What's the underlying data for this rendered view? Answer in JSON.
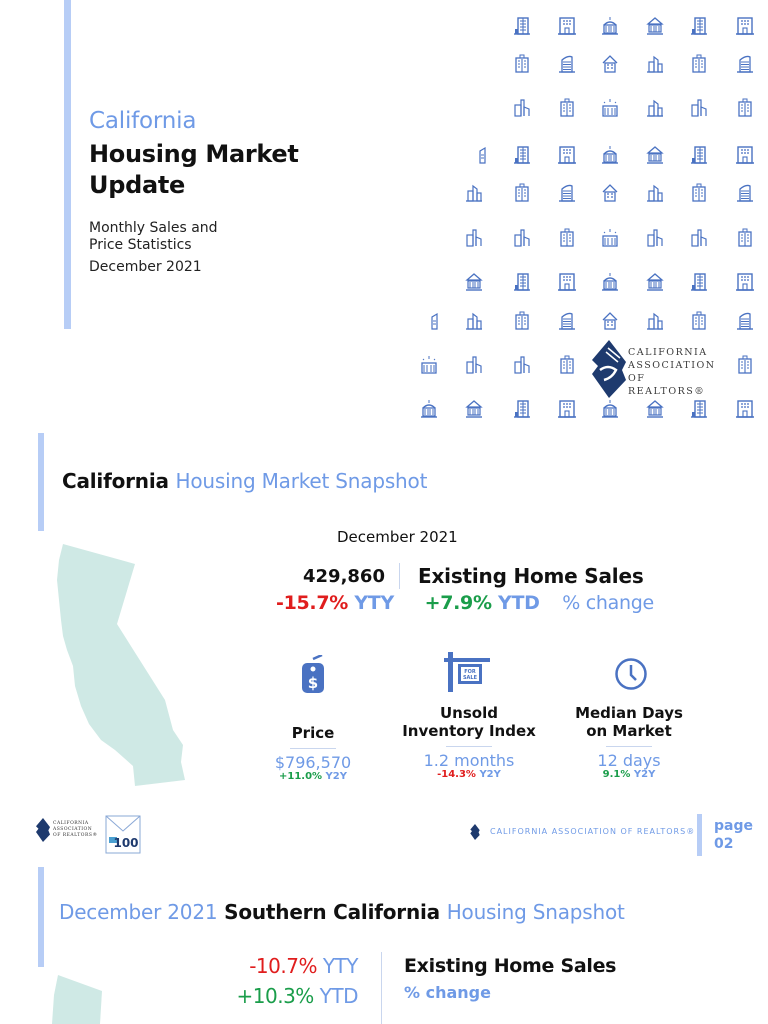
{
  "cover": {
    "title_highlight": "California",
    "title_line1": "Housing Market",
    "title_line2": "Update",
    "subtitle_line1": "Monthly Sales and",
    "subtitle_line2": "Price Statistics",
    "date": "December 2021",
    "logo": {
      "line1": "CALIFORNIA",
      "line2": "ASSOCIATION",
      "line3": "OF REALTORS®"
    },
    "icon_grid_color": "#4a72c2"
  },
  "snapshot": {
    "title_black": "California",
    "title_blue": "Housing Market Snapshot",
    "date": "December 2021",
    "sales_value": "429,860",
    "sales_label": "Existing Home Sales",
    "yty_value": "-15.7%",
    "yty_label": "YTY",
    "ytd_value": "+7.9%",
    "ytd_label": "YTD",
    "change_label": "% change",
    "metrics": [
      {
        "icon": "price-tag-icon",
        "label_line1": "Price",
        "label_line2": "",
        "value": "$796,570",
        "change": "+11.0%",
        "change_suffix": "Y2Y",
        "change_color": "green"
      },
      {
        "icon": "for-sale-sign-icon",
        "label_line1": "Unsold",
        "label_line2": "Inventory Index",
        "value": "1.2 months",
        "change": "-14.3%",
        "change_suffix": "Y2Y",
        "change_color": "red"
      },
      {
        "icon": "clock-icon",
        "label_line1": "Median Days",
        "label_line2": "on Market",
        "value": "12 days",
        "change": "9.1%",
        "change_suffix": "Y2Y",
        "change_color": "green"
      }
    ]
  },
  "footer": {
    "left_logo": {
      "line1": "CALIFORNIA",
      "line2": "ASSOCIATION",
      "line3": "OF REALTORS®"
    },
    "badge_text": "100",
    "right_text": "CALIFORNIA ASSOCIATION OF REALTORS®",
    "page_label": "page",
    "page_number": "02"
  },
  "southern": {
    "title_date": "December 2021",
    "title_black": "Southern California",
    "title_blue": "Housing Snapshot",
    "yty_value": "-10.7%",
    "yty_label": "YTY",
    "ytd_value": "+10.3%",
    "ytd_label": "YTD",
    "sales_label": "Existing Home Sales",
    "change_label": "% change"
  },
  "colors": {
    "accent_blue": "#6f9ae6",
    "bar_blue": "#b7cdf6",
    "negative_red": "#e01d1d",
    "positive_green": "#1a9d4a",
    "map_teal": "#cfe9e5",
    "logo_navy": "#1e3a6e"
  }
}
